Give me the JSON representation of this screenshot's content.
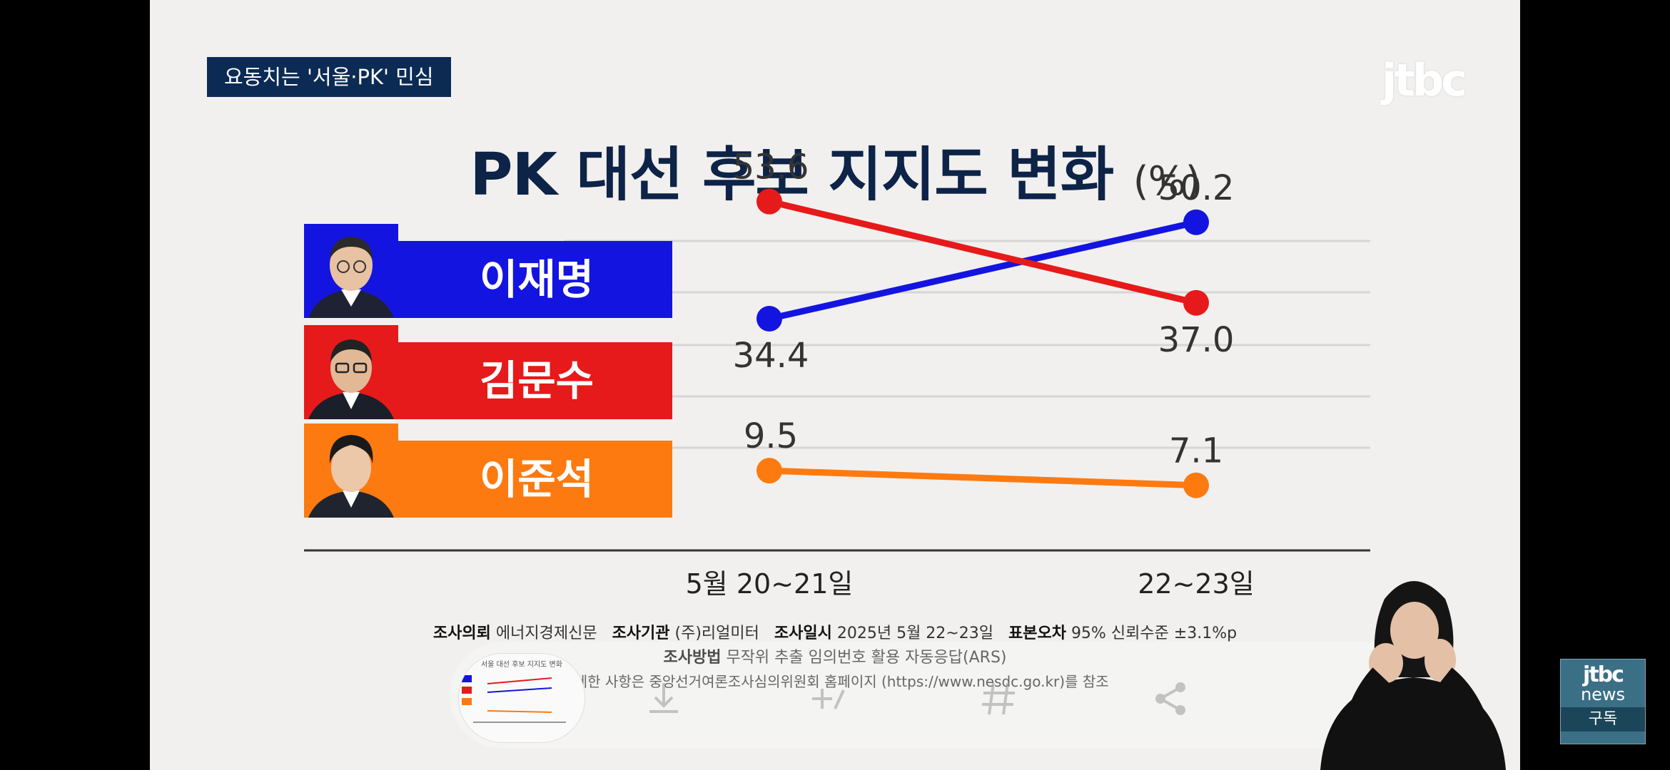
{
  "tagline": "요동치는 '서울·PK' 민심",
  "logo": "jtbc",
  "title": "PK 대선 후보 지지도 변화",
  "title_unit": "(%)",
  "candidates": [
    {
      "name": "이재명",
      "color": "#1414e0"
    },
    {
      "name": "김문수",
      "color": "#e61a1a"
    },
    {
      "name": "이준석",
      "color": "#fd7a10"
    }
  ],
  "chart_data": {
    "type": "line",
    "title": "PK 대선 후보 지지도 변화",
    "unit": "(%)",
    "x": [
      "5월 20~21일",
      "22~23일"
    ],
    "series": [
      {
        "name": "이재명",
        "color": "#1414e0",
        "values": [
          34.4,
          50.2
        ]
      },
      {
        "name": "김문수",
        "color": "#e61a1a",
        "values": [
          53.6,
          37.0
        ]
      },
      {
        "name": "이준석",
        "color": "#fd7a10",
        "values": [
          9.5,
          7.1
        ]
      }
    ],
    "value_labels": [
      {
        "series": "이재명",
        "texts": [
          "34.4",
          "50.2"
        ]
      },
      {
        "series": "김문수",
        "texts": [
          "53.6",
          "37.0"
        ]
      },
      {
        "series": "이준석",
        "texts": [
          "9.5",
          "7.1"
        ]
      }
    ],
    "grid": true
  },
  "survey": {
    "line1": [
      {
        "key": "조사의뢰",
        "val": "에너지경제신문"
      },
      {
        "key": "조사기관",
        "val": "(주)리얼미터"
      },
      {
        "key": "조사일시",
        "val": "2025년 5월 22~23일"
      },
      {
        "key": "표본오차",
        "val": "95% 신뢰수준 ±3.1%p"
      }
    ],
    "line2": {
      "key": "조사방법",
      "val": "무작위 추출 임의번호 활용 자동응답(ARS)"
    },
    "line3": "자세한 사항은 중앙선거여론조사심의위원회 홈페이지 (https://www.nesdc.go.kr)를 참조"
  },
  "thumbnail_caption": "서울 대선 후보 지지도 변화",
  "overlay_icons": [
    "download-icon",
    "add-to-playlist-icon",
    "hashtag-icon",
    "share-icon"
  ],
  "news_badge": {
    "line1": "jtbc",
    "line2": "news",
    "line3": "구독"
  }
}
